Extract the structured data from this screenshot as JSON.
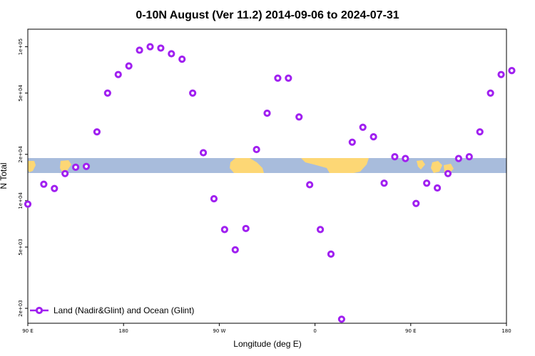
{
  "chart_data": {
    "type": "scatter",
    "title": "0-10N August (Ver 11.2)   2014-09-06 to 2024-07-31",
    "xlabel": "Longitude (deg E)",
    "ylabel": "N Total",
    "y_scale": "log",
    "ylim": [
      1600,
      130000
    ],
    "x_ticks": [
      {
        "label": "90 E",
        "index": 0
      },
      {
        "label": "180",
        "index": 9
      },
      {
        "label": "90 W",
        "index": 18
      },
      {
        "label": "0",
        "index": 27
      },
      {
        "label": "90 E",
        "index": 36
      },
      {
        "label": "180",
        "index": 45
      }
    ],
    "y_ticks": [
      {
        "label": "1e+05",
        "value": 100000
      },
      {
        "label": "5e+04",
        "value": 50000
      },
      {
        "label": "2e+04",
        "value": 20000
      },
      {
        "label": "1e+04",
        "value": 10000
      },
      {
        "label": "5e+03",
        "value": 5000
      },
      {
        "label": "2e+03",
        "value": 2000
      }
    ],
    "series": [
      {
        "name": "Land (Nadir&Glint) and Ocean (Glint)",
        "color": "#a020f0",
        "x_index": [
          0,
          1.5,
          2.5,
          3.5,
          4.5,
          5.5,
          6.5,
          7.5,
          8.5,
          9.5,
          10.5,
          11.5,
          12.5,
          13.5,
          14.5,
          15.5,
          16.5,
          17.5,
          18.5,
          19.5,
          20.5,
          21.5,
          22.5,
          23.5,
          24.5,
          25.5,
          26.5,
          27.5,
          28.5,
          29.5,
          30.5,
          31.5,
          32.5,
          33.5,
          34.5,
          35.5,
          36.5,
          37.5,
          38.5,
          39.5,
          40.5,
          41.5,
          42.5,
          43.5,
          44.5,
          45.5
        ],
        "values": [
          9500,
          12800,
          12000,
          15000,
          16500,
          16700,
          28000,
          50000,
          66000,
          75000,
          95000,
          100000,
          98000,
          90000,
          83000,
          50000,
          20500,
          10300,
          6500,
          4800,
          6600,
          21500,
          37000,
          62500,
          62500,
          35000,
          12700,
          6500,
          4500,
          1700,
          24000,
          30000,
          26000,
          13000,
          19300,
          18800,
          9600,
          13000,
          12100,
          15000,
          18800,
          19300,
          28000,
          50000,
          66000,
          70000
        ],
        "markers": [
          "v0",
          "v1",
          "v2",
          "v3",
          "v4",
          "v5",
          "v6",
          "v7",
          "v8",
          "v9",
          "v10",
          "v11",
          "v12",
          "v13",
          "v14",
          "v15",
          "v16",
          "v17",
          "v18",
          "v19",
          "v20",
          "v21",
          "v22",
          "v23",
          "v24",
          "v25",
          "v26",
          "v27",
          "v28",
          "v29",
          "v30",
          "v31",
          "v32",
          "v33",
          "v34",
          "v35",
          "v36",
          "v37",
          "v38",
          "v39",
          "v40",
          "v41",
          "v42",
          "v43",
          "v44",
          "v45"
        ]
      }
    ],
    "legend": "bottom-left",
    "band_color": "#a8bcdc",
    "land_color": "#fdd775"
  }
}
